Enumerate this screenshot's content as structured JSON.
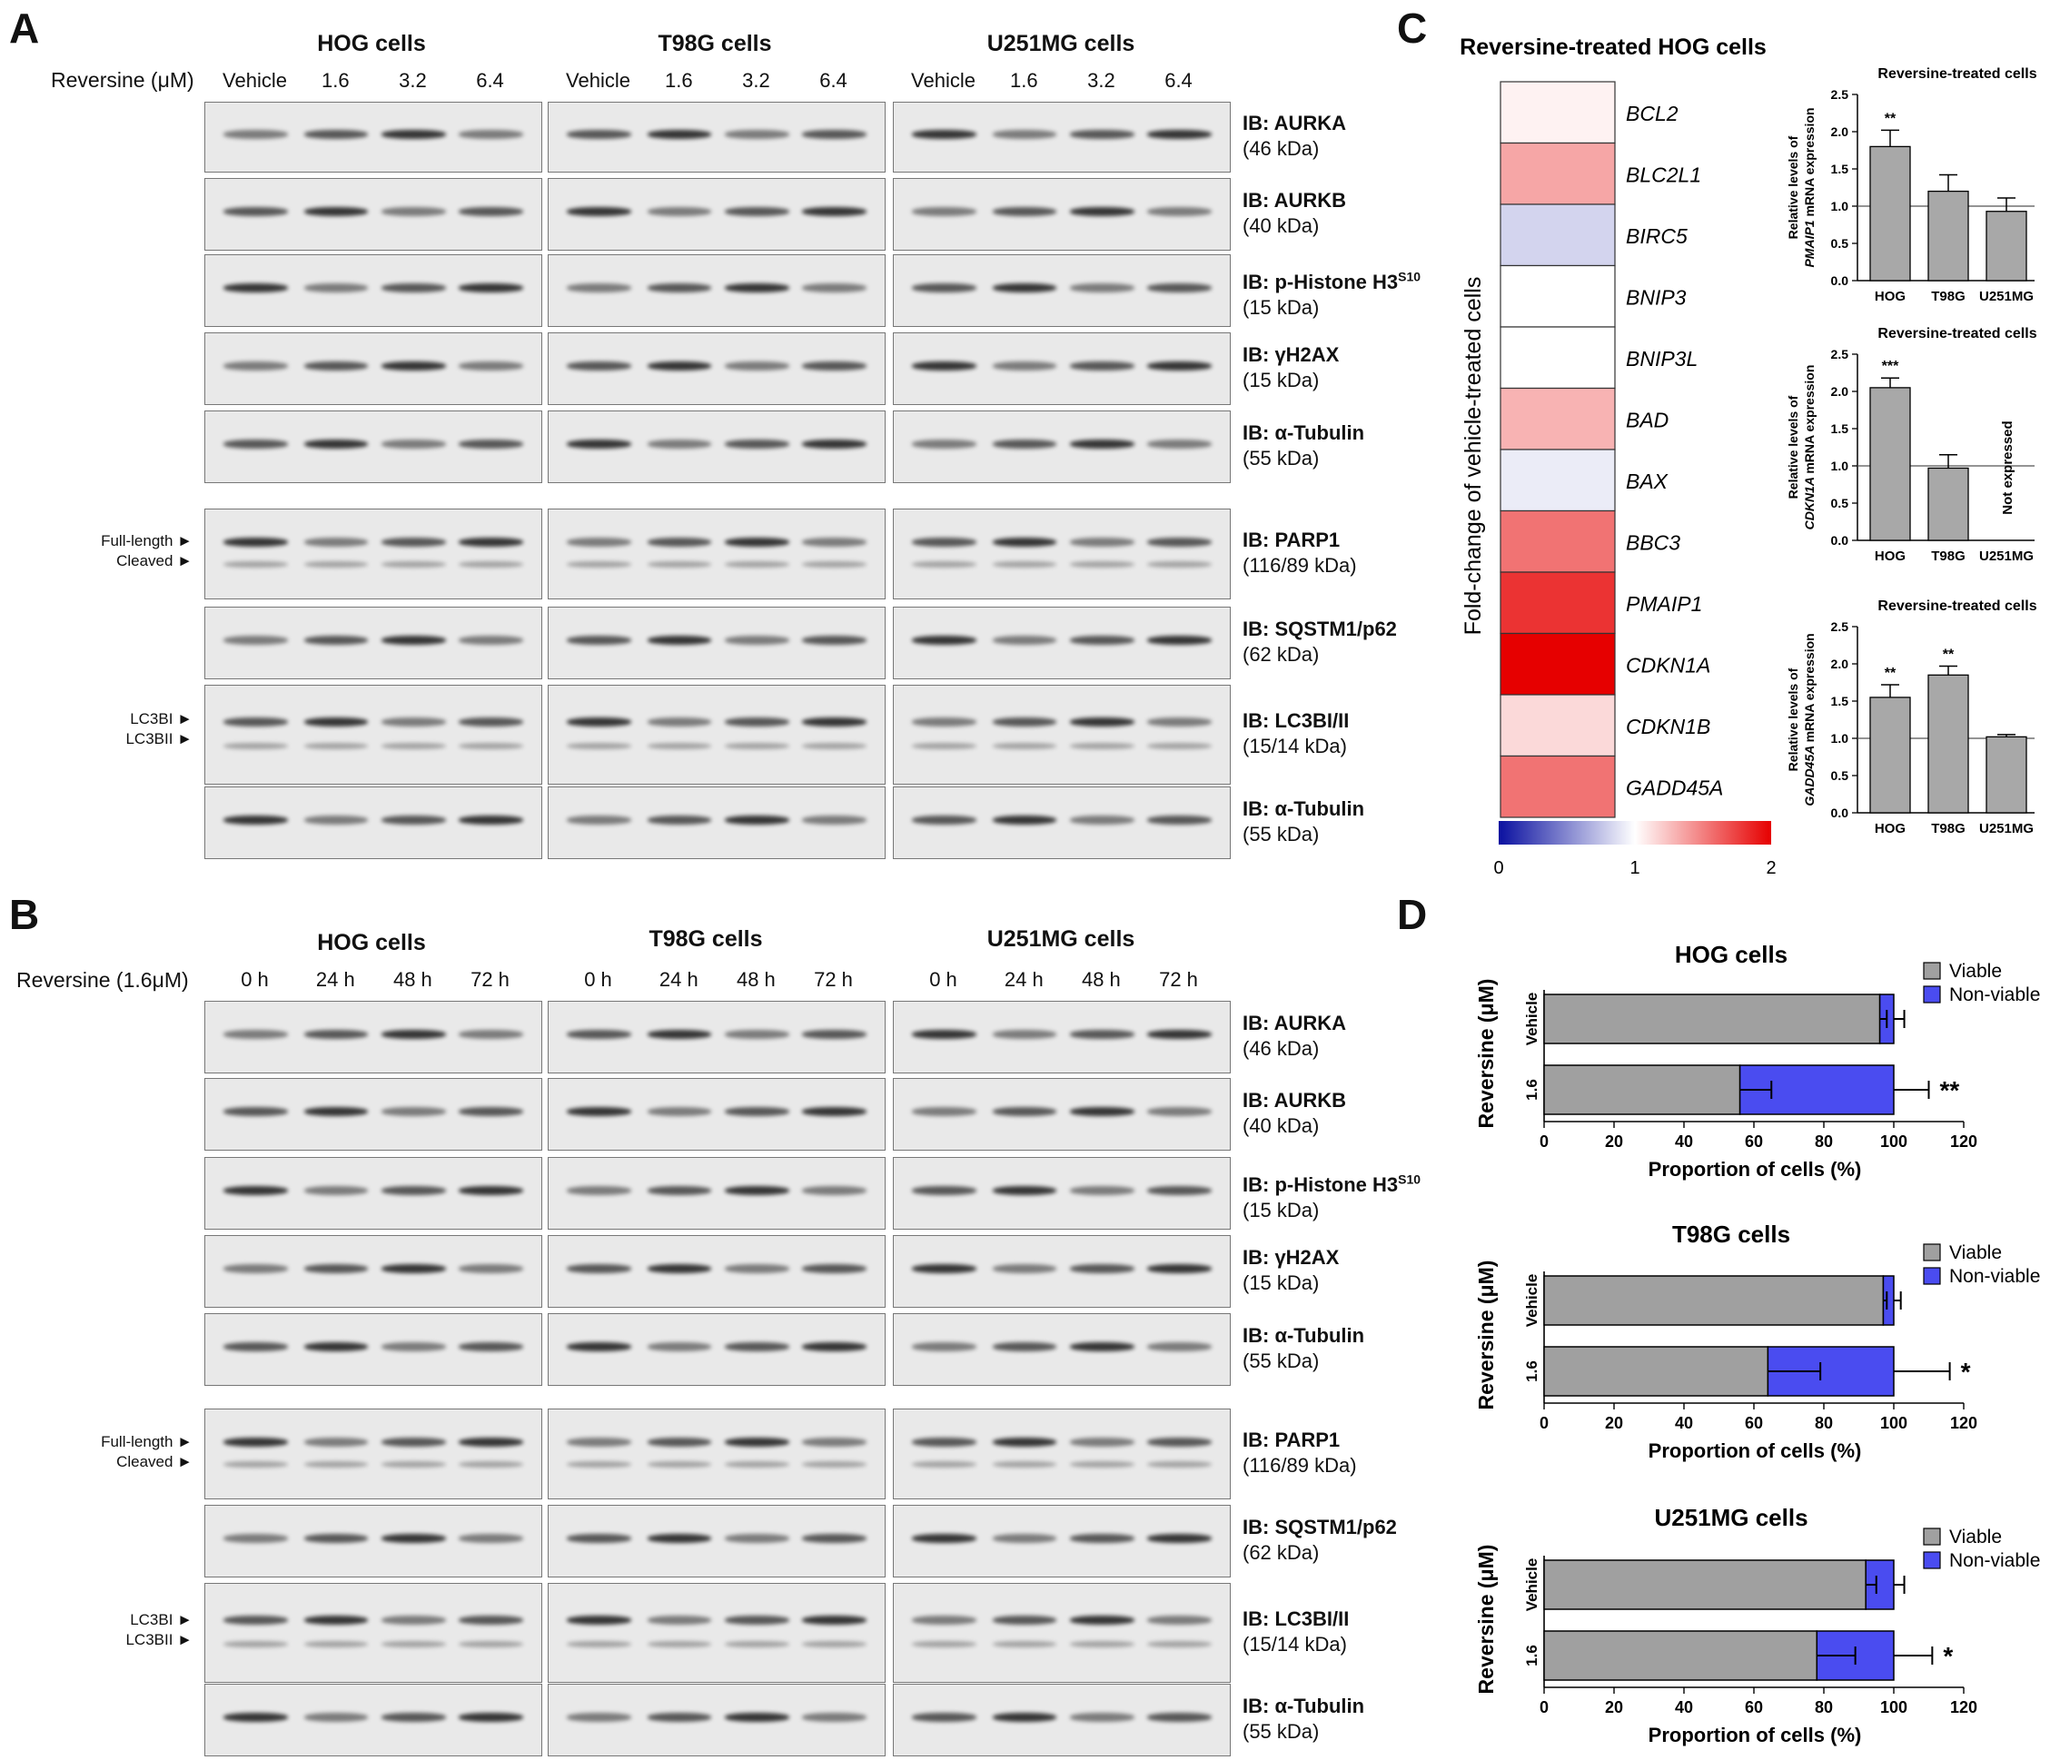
{
  "panel_a": {
    "letter": "A",
    "cells": [
      "HOG cells",
      "T98G cells",
      "U251MG cells"
    ],
    "treatment_label": "Reversine (μM)",
    "lanes": [
      "Vehicle",
      "1.6",
      "3.2",
      "6.4"
    ],
    "rows": [
      {
        "ib": "IB: AURKA",
        "kda": "(46 kDa)"
      },
      {
        "ib": "IB: AURKB",
        "kda": "(40 kDa)"
      },
      {
        "ib": "IB: p-Histone H3",
        "sup": "S10",
        "kda": "(15 kDa)"
      },
      {
        "ib": "IB: γH2AX",
        "kda": "(15 kDa)"
      },
      {
        "ib": "IB: α-Tubulin",
        "kda": "(55 kDa)"
      },
      {
        "ib": "IB: PARP1",
        "kda": "(116/89 kDa)"
      },
      {
        "ib": "IB: SQSTM1/p62",
        "kda": "(62 kDa)"
      },
      {
        "ib": "IB: LC3BI/II",
        "kda": "(15/14 kDa)"
      },
      {
        "ib": "IB: α-Tubulin",
        "kda": "(55 kDa)"
      }
    ],
    "side_labels": {
      "full_length": "Full-length ►",
      "cleaved": "Cleaved ►",
      "lc3bi": "LC3BI ►",
      "lc3bii": "LC3BII ►"
    }
  },
  "panel_b": {
    "letter": "B",
    "cells": [
      "HOG cells",
      "T98G cells",
      "U251MG cells"
    ],
    "treatment_label": "Reversine (1.6μM)",
    "lanes": [
      "0 h",
      "24 h",
      "48 h",
      "72 h"
    ],
    "rows": [
      {
        "ib": "IB: AURKA",
        "kda": "(46 kDa)"
      },
      {
        "ib": "IB: AURKB",
        "kda": "(40 kDa)"
      },
      {
        "ib": "IB: p-Histone H3",
        "sup": "S10",
        "kda": "(15 kDa)"
      },
      {
        "ib": "IB: γH2AX",
        "kda": "(15 kDa)"
      },
      {
        "ib": "IB: α-Tubulin",
        "kda": "(55 kDa)"
      },
      {
        "ib": "IB: PARP1",
        "kda": "(116/89 kDa)"
      },
      {
        "ib": "IB: SQSTM1/p62",
        "kda": "(62 kDa)"
      },
      {
        "ib": "IB: LC3BI/II",
        "kda": "(15/14 kDa)"
      },
      {
        "ib": "IB: α-Tubulin",
        "kda": "(55 kDa)"
      }
    ],
    "side_labels": {
      "full_length": "Full-length ►",
      "cleaved": "Cleaved ►",
      "lc3bi": "LC3BI ►",
      "lc3bii": "LC3BII ►"
    }
  },
  "panel_c_letter": "C",
  "panel_d_letter": "D",
  "chart_data": [
    {
      "type": "heatmap",
      "title": "Reversine-treated HOG cells",
      "ylabel": "Fold-change of vehicle-treated cells",
      "genes": [
        "BCL2",
        "BLC2L1",
        "BIRC5",
        "BNIP3",
        "BNIP3L",
        "BAD",
        "BAX",
        "BBC3",
        "PMAIP1",
        "CDKN1A",
        "CDKN1B",
        "GADD45A"
      ],
      "values": [
        1.05,
        1.35,
        0.82,
        1.0,
        1.0,
        1.3,
        0.92,
        1.55,
        1.8,
        2.0,
        1.15,
        1.55
      ],
      "scale": {
        "min": 0,
        "mid": 1,
        "max": 2,
        "min_color": "#0a10a0",
        "mid_color": "#ffffff",
        "max_color": "#e60000"
      },
      "scale_labels": [
        "0",
        "1",
        "2"
      ]
    },
    {
      "type": "bar",
      "title": "Reversine-treated cells",
      "ylabel_1": "Relative levels of",
      "ylabel_gene": "PMAIP1",
      "ylabel_2": "mRNA expression",
      "categories": [
        "HOG",
        "T98G",
        "U251MG"
      ],
      "values": [
        1.8,
        1.2,
        0.93
      ],
      "errors": [
        0.22,
        0.22,
        0.18
      ],
      "significance": [
        "**",
        "",
        ""
      ],
      "ylim": [
        0,
        2.5
      ],
      "yticks": [
        "0.0",
        "0.5",
        "1.0",
        "1.5",
        "2.0",
        "2.5"
      ],
      "reference_line": 1.0
    },
    {
      "type": "bar",
      "title": "Reversine-treated cells",
      "ylabel_1": "Relative levels of",
      "ylabel_gene": "CDKN1A",
      "ylabel_2": "mRNA expression",
      "categories": [
        "HOG",
        "T98G",
        "U251MG"
      ],
      "values": [
        2.05,
        0.97,
        null
      ],
      "errors": [
        0.13,
        0.18,
        0
      ],
      "significance": [
        "***",
        "",
        ""
      ],
      "annotation": "Not expressed",
      "ylim": [
        0,
        2.5
      ],
      "yticks": [
        "0.0",
        "0.5",
        "1.0",
        "1.5",
        "2.0",
        "2.5"
      ],
      "reference_line": 1.0
    },
    {
      "type": "bar",
      "title": "Reversine-treated cells",
      "ylabel_1": "Relative levels of",
      "ylabel_gene": "GADD45A",
      "ylabel_2": "mRNA expression",
      "categories": [
        "HOG",
        "T98G",
        "U251MG"
      ],
      "values": [
        1.55,
        1.85,
        1.02
      ],
      "errors": [
        0.17,
        0.12,
        0.03
      ],
      "significance": [
        "**",
        "**",
        ""
      ],
      "ylim": [
        0,
        2.5
      ],
      "yticks": [
        "0.0",
        "0.5",
        "1.0",
        "1.5",
        "2.0",
        "2.5"
      ],
      "reference_line": 1.0
    },
    {
      "type": "bar",
      "orientation": "horizontal-stacked",
      "title": "HOG cells",
      "ylabel": "Reversine (μM)",
      "xlabel": "Proportion of cells (%)",
      "categories": [
        "Vehicle",
        "1.6"
      ],
      "series": [
        {
          "name": "Viable",
          "values": [
            96,
            56
          ],
          "color": "#a0a0a0"
        },
        {
          "name": "Non-viable",
          "values": [
            4,
            44
          ],
          "color": "#4a4cf0"
        }
      ],
      "viable_error": [
        2,
        9
      ],
      "total_error": [
        3,
        10
      ],
      "significance": [
        "",
        "**"
      ],
      "xlim": [
        0,
        120
      ],
      "xticks": [
        "0",
        "20",
        "40",
        "60",
        "80",
        "100",
        "120"
      ]
    },
    {
      "type": "bar",
      "orientation": "horizontal-stacked",
      "title": "T98G cells",
      "ylabel": "Reversine (μM)",
      "xlabel": "Proportion of cells (%)",
      "categories": [
        "Vehicle",
        "1.6"
      ],
      "series": [
        {
          "name": "Viable",
          "values": [
            97,
            64
          ],
          "color": "#a0a0a0"
        },
        {
          "name": "Non-viable",
          "values": [
            3,
            36
          ],
          "color": "#4a4cf0"
        }
      ],
      "viable_error": [
        1,
        15
      ],
      "total_error": [
        2,
        16
      ],
      "significance": [
        "",
        "*"
      ],
      "xlim": [
        0,
        120
      ],
      "xticks": [
        "0",
        "20",
        "40",
        "60",
        "80",
        "100",
        "120"
      ]
    },
    {
      "type": "bar",
      "orientation": "horizontal-stacked",
      "title": "U251MG cells",
      "ylabel": "Reversine (μM)",
      "xlabel": "Proportion of cells (%)",
      "categories": [
        "Vehicle",
        "1.6"
      ],
      "series": [
        {
          "name": "Viable",
          "values": [
            92,
            78
          ],
          "color": "#a0a0a0"
        },
        {
          "name": "Non-viable",
          "values": [
            8,
            22
          ],
          "color": "#4a4cf0"
        }
      ],
      "viable_error": [
        3,
        11
      ],
      "total_error": [
        3,
        11
      ],
      "significance": [
        "",
        "*"
      ],
      "xlim": [
        0,
        120
      ],
      "xticks": [
        "0",
        "20",
        "40",
        "60",
        "80",
        "100",
        "120"
      ]
    }
  ]
}
